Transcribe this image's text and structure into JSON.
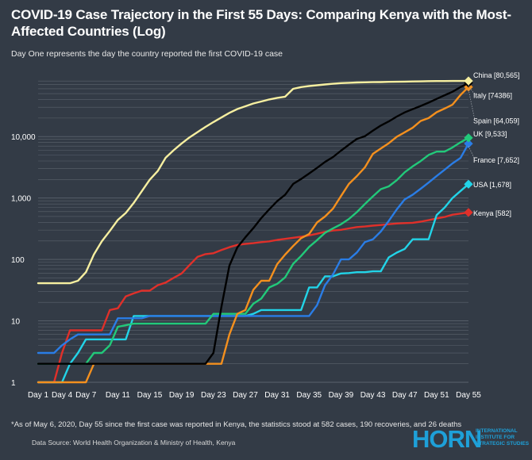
{
  "title": "COVID-19 Case Trajectory in the First 55 Days: Comparing Kenya with the Most-Affected Countries (Log)",
  "subtitle": "Day One represents the day the country reported the first COVID-19 case",
  "footnote": "*As of May 6, 2020, Day 55 since the first case was reported in Kenya, the statistics stood at 582 cases, 190 recoveries, and 26 deaths",
  "source": "Data Source: World Health Organization & Ministry of Health, Kenya",
  "logo": {
    "word": "HORN",
    "tagline": "INTERNATIONAL INSTITUTE FOR STRATEGIC STUDIES",
    "color": "#1ea0d8"
  },
  "chart_data": {
    "type": "line",
    "y_scale": "log",
    "ylim": [
      1,
      80565
    ],
    "xlim": [
      1,
      55
    ],
    "y_ticks": [
      1,
      10,
      100,
      1000,
      10000
    ],
    "y_tick_labels": [
      "1",
      "10",
      "100",
      "1,000",
      "10,000"
    ],
    "x_ticks": [
      1,
      4,
      7,
      11,
      15,
      19,
      23,
      27,
      31,
      35,
      39,
      43,
      47,
      51,
      55
    ],
    "x_tick_labels": [
      "Day 1",
      "Day 4",
      "Day 7",
      "Day 11",
      "Day 15",
      "Day 19",
      "Day 23",
      "Day 27",
      "Day 31",
      "Day 35",
      "Day 39",
      "Day 43",
      "Day 47",
      "Day 51",
      "Day 55"
    ],
    "grid": true,
    "series": [
      {
        "name": "China",
        "end_label": "China [80,565]",
        "color": "#f6efa0",
        "points": [
          [
            1,
            41
          ],
          [
            5,
            41
          ],
          [
            6,
            45
          ],
          [
            7,
            62
          ],
          [
            8,
            121
          ],
          [
            9,
            198
          ],
          [
            10,
            291
          ],
          [
            11,
            440
          ],
          [
            12,
            571
          ],
          [
            13,
            830
          ],
          [
            14,
            1287
          ],
          [
            15,
            1975
          ],
          [
            16,
            2744
          ],
          [
            17,
            4515
          ],
          [
            18,
            5974
          ],
          [
            19,
            7711
          ],
          [
            20,
            9692
          ],
          [
            21,
            11791
          ],
          [
            22,
            14380
          ],
          [
            23,
            17205
          ],
          [
            24,
            20438
          ],
          [
            25,
            24324
          ],
          [
            26,
            28018
          ],
          [
            27,
            31161
          ],
          [
            28,
            34546
          ],
          [
            29,
            37198
          ],
          [
            30,
            40171
          ],
          [
            31,
            42638
          ],
          [
            32,
            44653
          ],
          [
            33,
            59804
          ],
          [
            34,
            63851
          ],
          [
            35,
            66492
          ],
          [
            36,
            68500
          ],
          [
            37,
            70548
          ],
          [
            38,
            72436
          ],
          [
            39,
            74185
          ],
          [
            40,
            75002
          ],
          [
            41,
            75891
          ],
          [
            42,
            76288
          ],
          [
            43,
            76936
          ],
          [
            44,
            77150
          ],
          [
            45,
            77658
          ],
          [
            46,
            78064
          ],
          [
            47,
            78497
          ],
          [
            48,
            78824
          ],
          [
            49,
            79251
          ],
          [
            50,
            79824
          ],
          [
            51,
            80026
          ],
          [
            52,
            80151
          ],
          [
            53,
            80270
          ],
          [
            54,
            80409
          ],
          [
            55,
            80565
          ]
        ]
      },
      {
        "name": "Italy",
        "end_label": "Italy [74386]",
        "color": "#000000",
        "points": [
          [
            1,
            2
          ],
          [
            22,
            2
          ],
          [
            23,
            3
          ],
          [
            24,
            17
          ],
          [
            25,
            79
          ],
          [
            26,
            157
          ],
          [
            27,
            229
          ],
          [
            28,
            323
          ],
          [
            29,
            470
          ],
          [
            30,
            655
          ],
          [
            31,
            889
          ],
          [
            32,
            1128
          ],
          [
            33,
            1694
          ],
          [
            34,
            2036
          ],
          [
            35,
            2502
          ],
          [
            36,
            3089
          ],
          [
            37,
            3858
          ],
          [
            38,
            4636
          ],
          [
            39,
            5883
          ],
          [
            40,
            7375
          ],
          [
            41,
            9172
          ],
          [
            42,
            10149
          ],
          [
            43,
            12462
          ],
          [
            44,
            15113
          ],
          [
            45,
            17660
          ],
          [
            46,
            21157
          ],
          [
            47,
            24747
          ],
          [
            48,
            27980
          ],
          [
            49,
            31506
          ],
          [
            50,
            35713
          ],
          [
            51,
            41035
          ],
          [
            52,
            47021
          ],
          [
            53,
            53578
          ],
          [
            54,
            63927
          ],
          [
            55,
            74386
          ]
        ]
      },
      {
        "name": "Spain",
        "end_label": "Spain [64,059]",
        "color": "#f4901e",
        "points": [
          [
            1,
            1
          ],
          [
            7,
            1
          ],
          [
            8,
            2
          ],
          [
            24,
            2
          ],
          [
            25,
            6
          ],
          [
            26,
            13
          ],
          [
            27,
            15
          ],
          [
            28,
            32
          ],
          [
            29,
            45
          ],
          [
            30,
            45
          ],
          [
            31,
            84
          ],
          [
            32,
            120
          ],
          [
            33,
            165
          ],
          [
            34,
            222
          ],
          [
            35,
            259
          ],
          [
            36,
            400
          ],
          [
            37,
            500
          ],
          [
            38,
            673
          ],
          [
            39,
            1073
          ],
          [
            40,
            1695
          ],
          [
            41,
            2277
          ],
          [
            42,
            3146
          ],
          [
            43,
            5232
          ],
          [
            44,
            6391
          ],
          [
            45,
            7798
          ],
          [
            46,
            9942
          ],
          [
            47,
            11748
          ],
          [
            48,
            13910
          ],
          [
            49,
            17963
          ],
          [
            50,
            19980
          ],
          [
            51,
            24926
          ],
          [
            52,
            28572
          ],
          [
            53,
            33089
          ],
          [
            54,
            47610
          ],
          [
            55,
            64059
          ]
        ]
      },
      {
        "name": "UK",
        "end_label": "UK [9,533]",
        "color": "#22c97a",
        "points": [
          [
            1,
            2
          ],
          [
            7,
            2
          ],
          [
            8,
            3
          ],
          [
            9,
            3
          ],
          [
            10,
            4
          ],
          [
            11,
            8
          ],
          [
            13,
            9
          ],
          [
            15,
            9
          ],
          [
            22,
            9
          ],
          [
            23,
            13
          ],
          [
            27,
            13
          ],
          [
            28,
            19
          ],
          [
            29,
            23
          ],
          [
            30,
            35
          ],
          [
            31,
            40
          ],
          [
            32,
            51
          ],
          [
            33,
            85
          ],
          [
            34,
            114
          ],
          [
            35,
            160
          ],
          [
            36,
            206
          ],
          [
            37,
            271
          ],
          [
            38,
            321
          ],
          [
            39,
            373
          ],
          [
            40,
            456
          ],
          [
            41,
            590
          ],
          [
            42,
            797
          ],
          [
            43,
            1061
          ],
          [
            44,
            1391
          ],
          [
            45,
            1543
          ],
          [
            46,
            1950
          ],
          [
            47,
            2626
          ],
          [
            48,
            3269
          ],
          [
            49,
            3983
          ],
          [
            50,
            5018
          ],
          [
            51,
            5683
          ],
          [
            52,
            5683
          ],
          [
            53,
            6650
          ],
          [
            54,
            8077
          ],
          [
            55,
            9533
          ]
        ]
      },
      {
        "name": "France",
        "end_label": "France [7,652]",
        "color": "#2a7de6",
        "points": [
          [
            1,
            3
          ],
          [
            3,
            3
          ],
          [
            4,
            4
          ],
          [
            5,
            5
          ],
          [
            6,
            6
          ],
          [
            10,
            6
          ],
          [
            11,
            11
          ],
          [
            12,
            11
          ],
          [
            13,
            11
          ],
          [
            14,
            11
          ],
          [
            15,
            12
          ],
          [
            35,
            12
          ],
          [
            36,
            18
          ],
          [
            37,
            38
          ],
          [
            38,
            57
          ],
          [
            39,
            100
          ],
          [
            40,
            100
          ],
          [
            41,
            130
          ],
          [
            42,
            191
          ],
          [
            43,
            212
          ],
          [
            44,
            285
          ],
          [
            45,
            423
          ],
          [
            46,
            653
          ],
          [
            47,
            949
          ],
          [
            48,
            1126
          ],
          [
            49,
            1412
          ],
          [
            50,
            1784
          ],
          [
            51,
            2281
          ],
          [
            52,
            2876
          ],
          [
            53,
            3661
          ],
          [
            54,
            4499
          ],
          [
            55,
            7652
          ]
        ]
      },
      {
        "name": "USA",
        "end_label": "USA [1,678]",
        "color": "#22d4e8",
        "points": [
          [
            1,
            1
          ],
          [
            4,
            1
          ],
          [
            5,
            2
          ],
          [
            6,
            3
          ],
          [
            7,
            5
          ],
          [
            12,
            5
          ],
          [
            13,
            12
          ],
          [
            27,
            12
          ],
          [
            28,
            13
          ],
          [
            29,
            15
          ],
          [
            34,
            15
          ],
          [
            35,
            35
          ],
          [
            36,
            35
          ],
          [
            37,
            53
          ],
          [
            38,
            53
          ],
          [
            39,
            59
          ],
          [
            40,
            60
          ],
          [
            41,
            62
          ],
          [
            42,
            62
          ],
          [
            43,
            64
          ],
          [
            44,
            64
          ],
          [
            45,
            108
          ],
          [
            46,
            129
          ],
          [
            47,
            148
          ],
          [
            48,
            213
          ],
          [
            49,
            213
          ],
          [
            50,
            213
          ],
          [
            51,
            528
          ],
          [
            52,
            697
          ],
          [
            53,
            1000
          ],
          [
            54,
            1301
          ],
          [
            55,
            1678
          ]
        ]
      },
      {
        "name": "Kenya",
        "end_label": "Kenya [582]",
        "color": "#e0302a",
        "points": [
          [
            1,
            1
          ],
          [
            3,
            1
          ],
          [
            4,
            3
          ],
          [
            5,
            7
          ],
          [
            9,
            7
          ],
          [
            10,
            15
          ],
          [
            11,
            16
          ],
          [
            12,
            25
          ],
          [
            13,
            28
          ],
          [
            14,
            31
          ],
          [
            15,
            31
          ],
          [
            16,
            38
          ],
          [
            17,
            42
          ],
          [
            18,
            50
          ],
          [
            19,
            59
          ],
          [
            20,
            81
          ],
          [
            21,
            110
          ],
          [
            22,
            122
          ],
          [
            23,
            126
          ],
          [
            24,
            142
          ],
          [
            25,
            158
          ],
          [
            26,
            172
          ],
          [
            27,
            179
          ],
          [
            28,
            184
          ],
          [
            29,
            191
          ],
          [
            30,
            197
          ],
          [
            31,
            208
          ],
          [
            32,
            216
          ],
          [
            33,
            225
          ],
          [
            34,
            234
          ],
          [
            35,
            246
          ],
          [
            36,
            262
          ],
          [
            37,
            281
          ],
          [
            38,
            296
          ],
          [
            39,
            303
          ],
          [
            40,
            320
          ],
          [
            41,
            336
          ],
          [
            42,
            343
          ],
          [
            43,
            355
          ],
          [
            44,
            363
          ],
          [
            45,
            374
          ],
          [
            46,
            384
          ],
          [
            47,
            390
          ],
          [
            48,
            395
          ],
          [
            49,
            411
          ],
          [
            50,
            435
          ],
          [
            51,
            465
          ],
          [
            52,
            490
          ],
          [
            53,
            535
          ],
          [
            54,
            557
          ],
          [
            55,
            582
          ]
        ]
      }
    ]
  },
  "colors": {
    "background": "#333b46",
    "gridline": "#5b636e",
    "text": "#ffffff"
  }
}
